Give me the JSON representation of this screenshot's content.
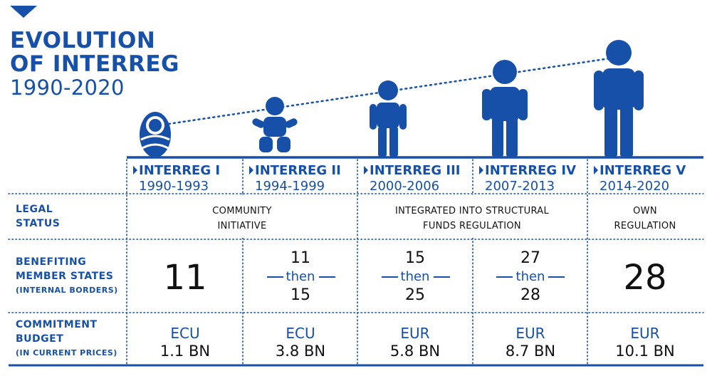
{
  "header": {
    "title_line1": "EVOLUTION",
    "title_line2": "OF INTERREG",
    "years": "1990-2020"
  },
  "programmes": [
    {
      "name": "INTERREG I",
      "years": "1990-1993"
    },
    {
      "name": "INTERREG II",
      "years": "1994-1999"
    },
    {
      "name": "INTERREG III",
      "years": "2000-2006"
    },
    {
      "name": "INTERREG IV",
      "years": "2007-2013"
    },
    {
      "name": "INTERREG V",
      "years": "2014-2020"
    }
  ],
  "rows": {
    "legal_status": {
      "label_line1": "LEGAL",
      "label_line2": "STATUS",
      "community": {
        "line1": "COMMUNITY",
        "line2": "INITIATIVE"
      },
      "integrated": {
        "line1": "INTEGRATED INTO STRUCTURAL",
        "line2": "FUNDS REGULATION"
      },
      "own": {
        "line1": "OWN",
        "line2": "REGULATION"
      }
    },
    "member_states": {
      "label_line1": "BENEFITING",
      "label_line2": "MEMBER STATES",
      "label_line3": "(INTERNAL BORDERS)",
      "then_word": "then",
      "values": [
        {
          "single": "11"
        },
        {
          "from": "11",
          "to": "15"
        },
        {
          "from": "15",
          "to": "25"
        },
        {
          "from": "27",
          "to": "28"
        },
        {
          "single": "28"
        }
      ]
    },
    "budget": {
      "label_line1": "COMMITMENT",
      "label_line2": "BUDGET",
      "label_line3": "(IN CURRENT PRICES)",
      "values": [
        {
          "currency": "ECU",
          "amount": "1.1 BN"
        },
        {
          "currency": "ECU",
          "amount": "3.8 BN"
        },
        {
          "currency": "EUR",
          "amount": "5.8 BN"
        },
        {
          "currency": "EUR",
          "amount": "8.7 BN"
        },
        {
          "currency": "EUR",
          "amount": "10.1 BN"
        }
      ]
    }
  },
  "colors": {
    "accent": "#1650a8",
    "text": "#111111"
  }
}
